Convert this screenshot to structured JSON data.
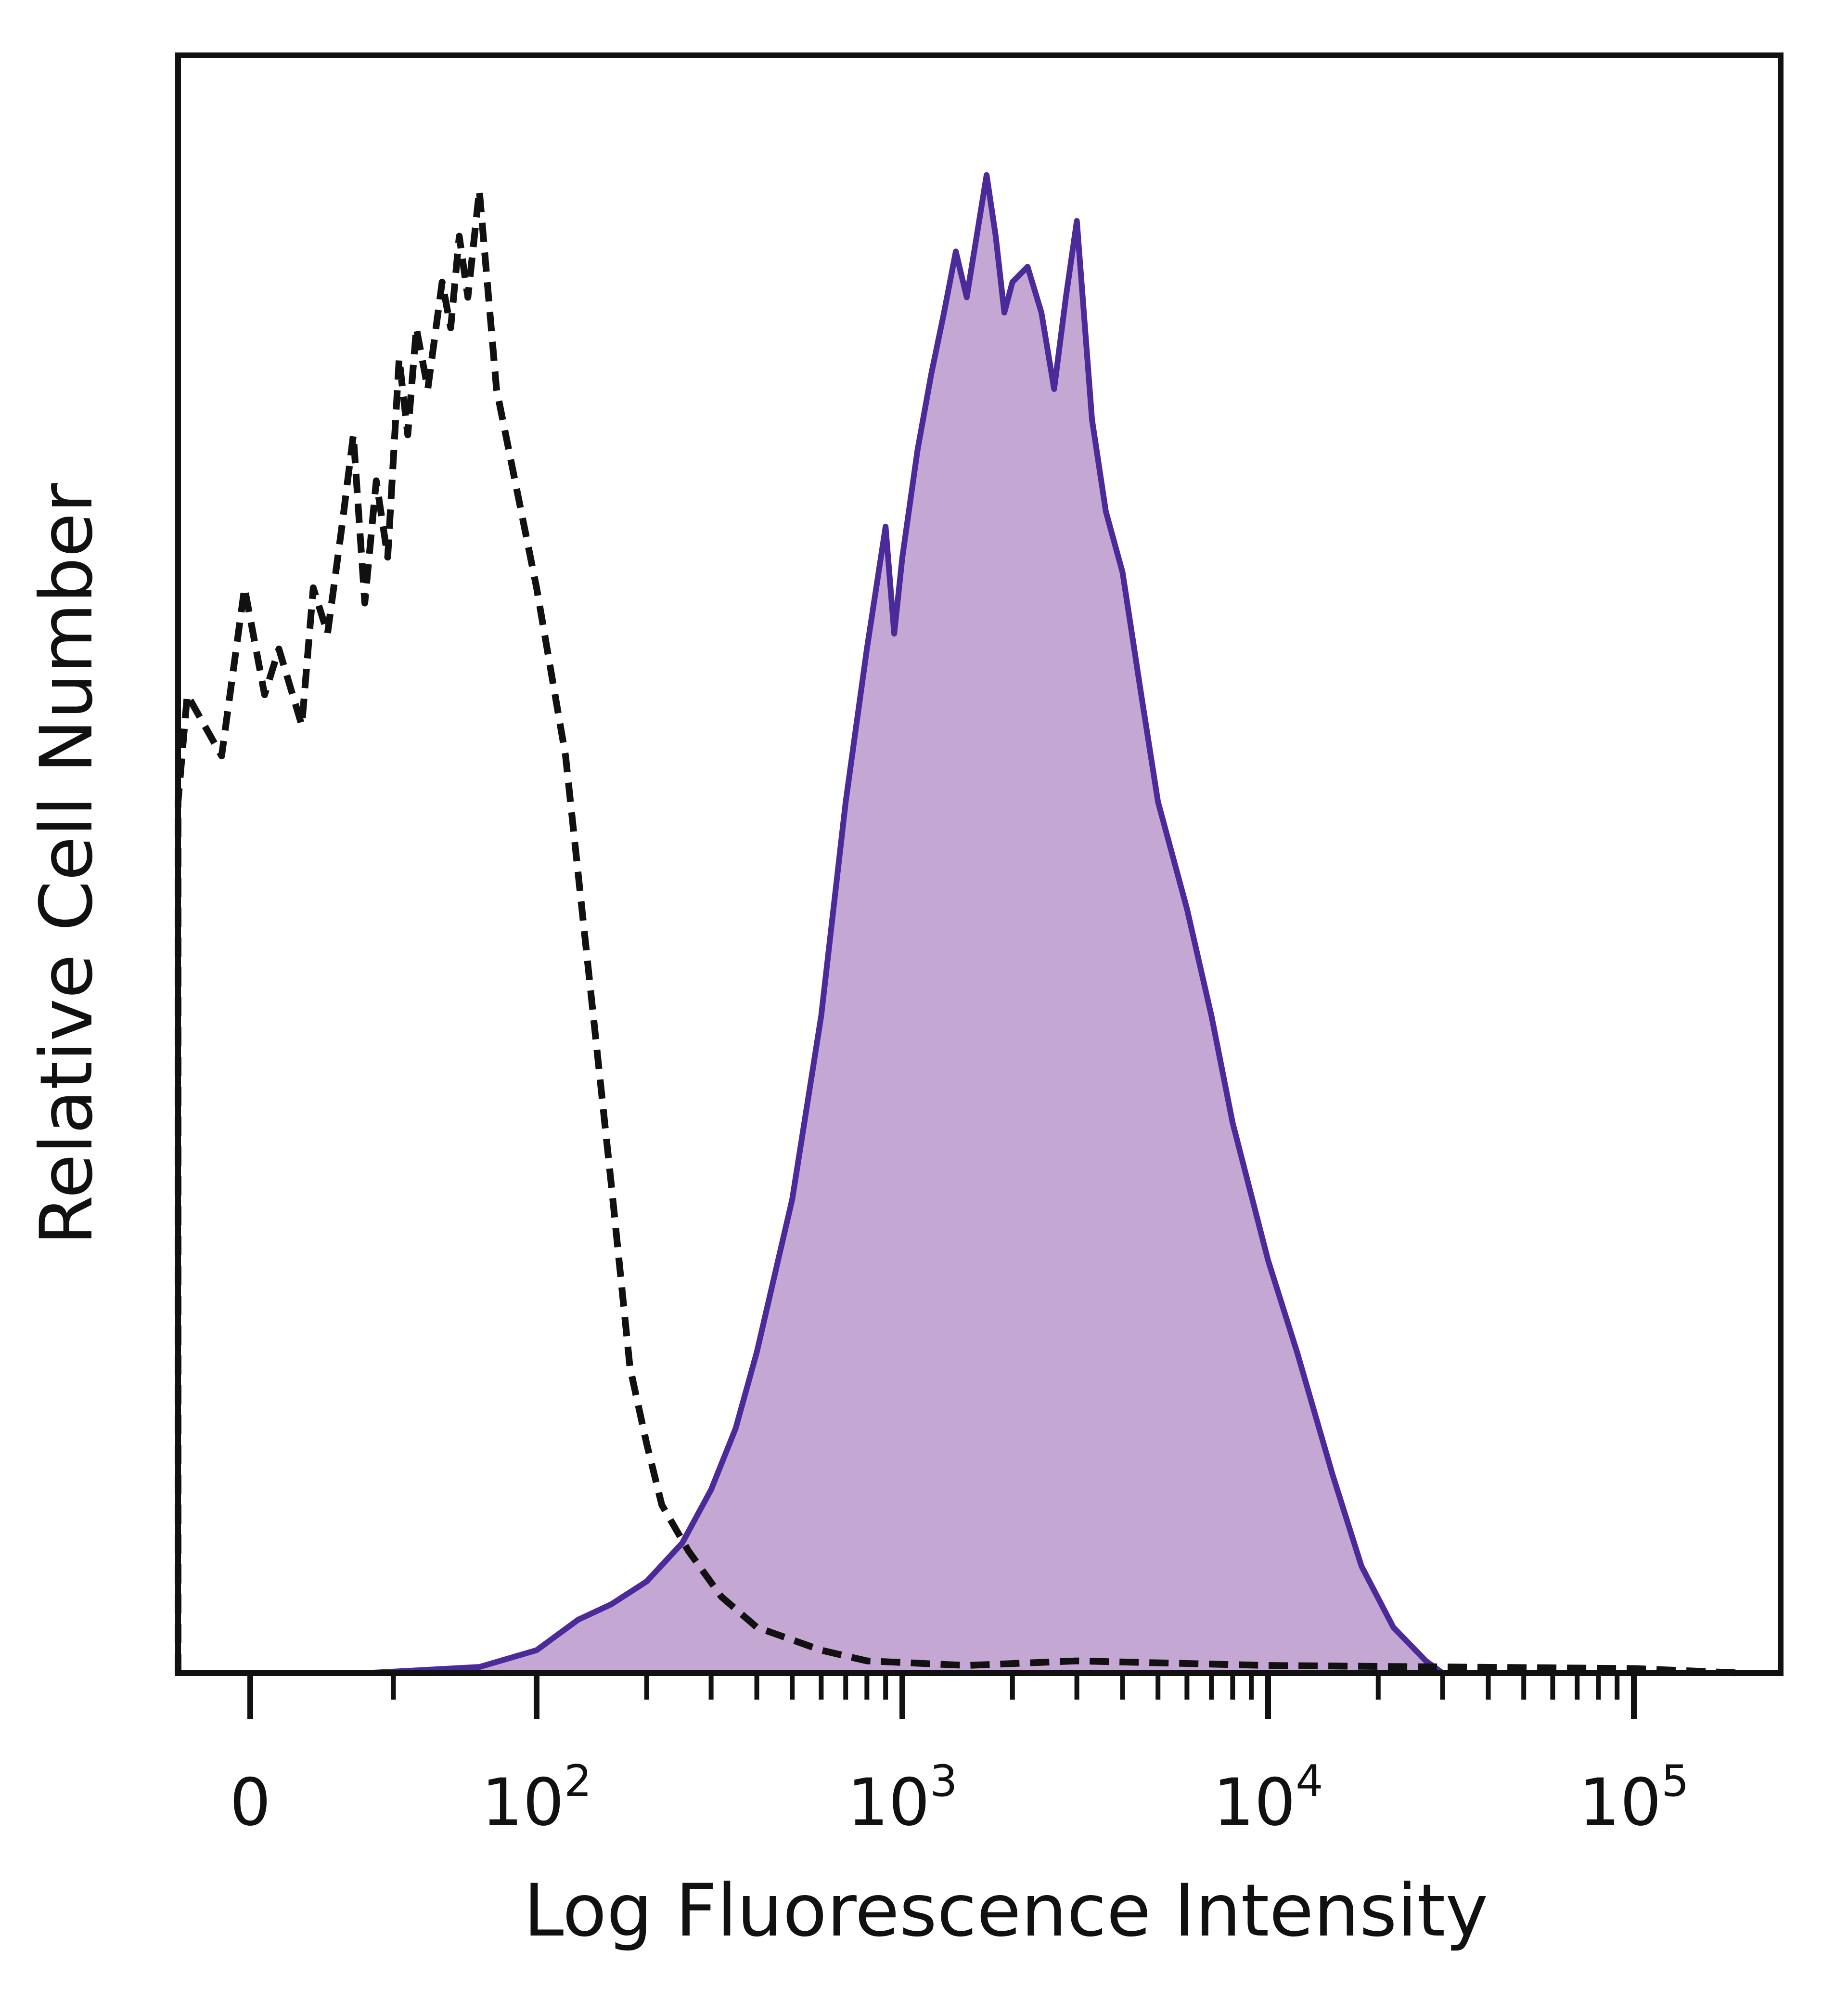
{
  "chart_data": {
    "type": "area",
    "xlabel": "Log Fluorescence Intensity",
    "ylabel": "Relative Cell Number",
    "x_scale": "biexponential (linear near 0, log above 10^2)",
    "x_ticks": [
      {
        "value": 0,
        "label": "0"
      },
      {
        "value": 100,
        "label": "10",
        "exp": "2"
      },
      {
        "value": 1000,
        "label": "10",
        "exp": "3"
      },
      {
        "value": 10000,
        "label": "10",
        "exp": "4"
      },
      {
        "value": 100000,
        "label": "10",
        "exp": "5"
      }
    ],
    "ylim": [
      0,
      100
    ],
    "grid": false,
    "series": [
      {
        "style": "dashed",
        "color": "#111111",
        "fill": "none",
        "points": [
          [
            -30,
            0
          ],
          [
            -30,
            57
          ],
          [
            -22,
            64
          ],
          [
            -10,
            60
          ],
          [
            -2,
            71
          ],
          [
            5,
            64
          ],
          [
            10,
            67
          ],
          [
            18,
            62
          ],
          [
            22,
            71
          ],
          [
            27,
            68
          ],
          [
            32,
            75
          ],
          [
            36,
            81
          ],
          [
            40,
            70
          ],
          [
            44,
            78
          ],
          [
            48,
            73
          ],
          [
            52,
            86
          ],
          [
            55,
            81
          ],
          [
            58,
            88
          ],
          [
            62,
            84
          ],
          [
            67,
            91
          ],
          [
            70,
            88
          ],
          [
            73,
            94
          ],
          [
            76,
            90
          ],
          [
            80,
            97
          ],
          [
            86,
            84
          ],
          [
            100,
            71
          ],
          [
            120,
            60
          ],
          [
            140,
            45
          ],
          [
            160,
            32
          ],
          [
            180,
            20
          ],
          [
            200,
            15
          ],
          [
            220,
            11
          ],
          [
            260,
            8
          ],
          [
            320,
            5
          ],
          [
            400,
            3
          ],
          [
            600,
            1.5
          ],
          [
            800,
            0.8
          ],
          [
            1500,
            0.5
          ],
          [
            3000,
            0.8
          ],
          [
            10000,
            0.5
          ],
          [
            100000,
            0.3
          ],
          [
            200000,
            0
          ]
        ]
      },
      {
        "style": "solid",
        "color": "#4b2a9a",
        "fill": "#c4a7d2",
        "points": [
          [
            -50,
            0
          ],
          [
            40,
            0
          ],
          [
            80,
            0.4
          ],
          [
            100,
            1.5
          ],
          [
            130,
            3.5
          ],
          [
            160,
            4.5
          ],
          [
            200,
            6
          ],
          [
            250,
            8.5
          ],
          [
            300,
            12
          ],
          [
            350,
            16
          ],
          [
            400,
            21
          ],
          [
            500,
            31
          ],
          [
            600,
            43
          ],
          [
            700,
            57
          ],
          [
            800,
            67
          ],
          [
            900,
            75
          ],
          [
            950,
            68
          ],
          [
            1000,
            73
          ],
          [
            1100,
            80
          ],
          [
            1200,
            85
          ],
          [
            1300,
            89
          ],
          [
            1400,
            93
          ],
          [
            1500,
            90
          ],
          [
            1700,
            98
          ],
          [
            1800,
            94
          ],
          [
            1900,
            89
          ],
          [
            2000,
            91
          ],
          [
            2200,
            92
          ],
          [
            2400,
            89
          ],
          [
            2600,
            84
          ],
          [
            2800,
            90
          ],
          [
            3000,
            95
          ],
          [
            3300,
            82
          ],
          [
            3600,
            76
          ],
          [
            4000,
            72
          ],
          [
            4500,
            64
          ],
          [
            5000,
            57
          ],
          [
            6000,
            50
          ],
          [
            7000,
            43
          ],
          [
            8000,
            36
          ],
          [
            10000,
            27
          ],
          [
            12000,
            21
          ],
          [
            15000,
            13
          ],
          [
            18000,
            7
          ],
          [
            22000,
            3
          ],
          [
            27000,
            0.8
          ],
          [
            30000,
            0
          ],
          [
            200000,
            0
          ]
        ]
      }
    ]
  }
}
